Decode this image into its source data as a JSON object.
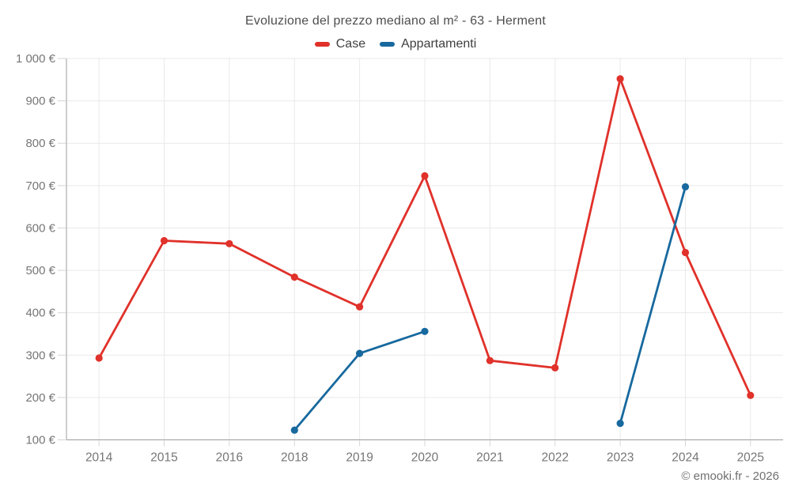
{
  "title": "Evoluzione del prezzo mediano al m² - 63 - Herment",
  "legend": {
    "items": [
      {
        "label": "Case",
        "color": "#e0312a"
      },
      {
        "label": "Appartamenti",
        "color": "#17699e"
      }
    ]
  },
  "footer": {
    "credit": "© emooki.fr - 2026"
  },
  "colors": {
    "grid": "#e9e9e9",
    "axis": "#9c9c9c",
    "tick": "#d4d4d4",
    "axis_label": "#767676",
    "background": "#ffffff"
  },
  "chart_data": {
    "type": "line",
    "title": "Evoluzione del prezzo mediano al m² - 63 - Herment",
    "categories": [
      "2014",
      "2015",
      "2016",
      "2018",
      "2019",
      "2020",
      "2021",
      "2022",
      "2023",
      "2024",
      "2025"
    ],
    "series": [
      {
        "name": "Case",
        "color": "#e0312a",
        "values": [
          293,
          570,
          563,
          484,
          414,
          723,
          287,
          270,
          952,
          542,
          205
        ]
      },
      {
        "name": "Appartamenti",
        "color": "#17699e",
        "values": [
          null,
          null,
          null,
          123,
          304,
          356,
          null,
          null,
          139,
          697,
          null
        ]
      }
    ],
    "xlabel": "",
    "ylabel": "",
    "ylim": [
      100,
      1000
    ],
    "yticks": [
      100,
      200,
      300,
      400,
      500,
      600,
      700,
      800,
      900,
      1000
    ],
    "ytick_labels": [
      "100 €",
      "200 €",
      "300 €",
      "400 €",
      "500 €",
      "600 €",
      "700 €",
      "800 €",
      "900 €",
      "1 000 €"
    ],
    "grid": true,
    "legend_position": "top"
  }
}
